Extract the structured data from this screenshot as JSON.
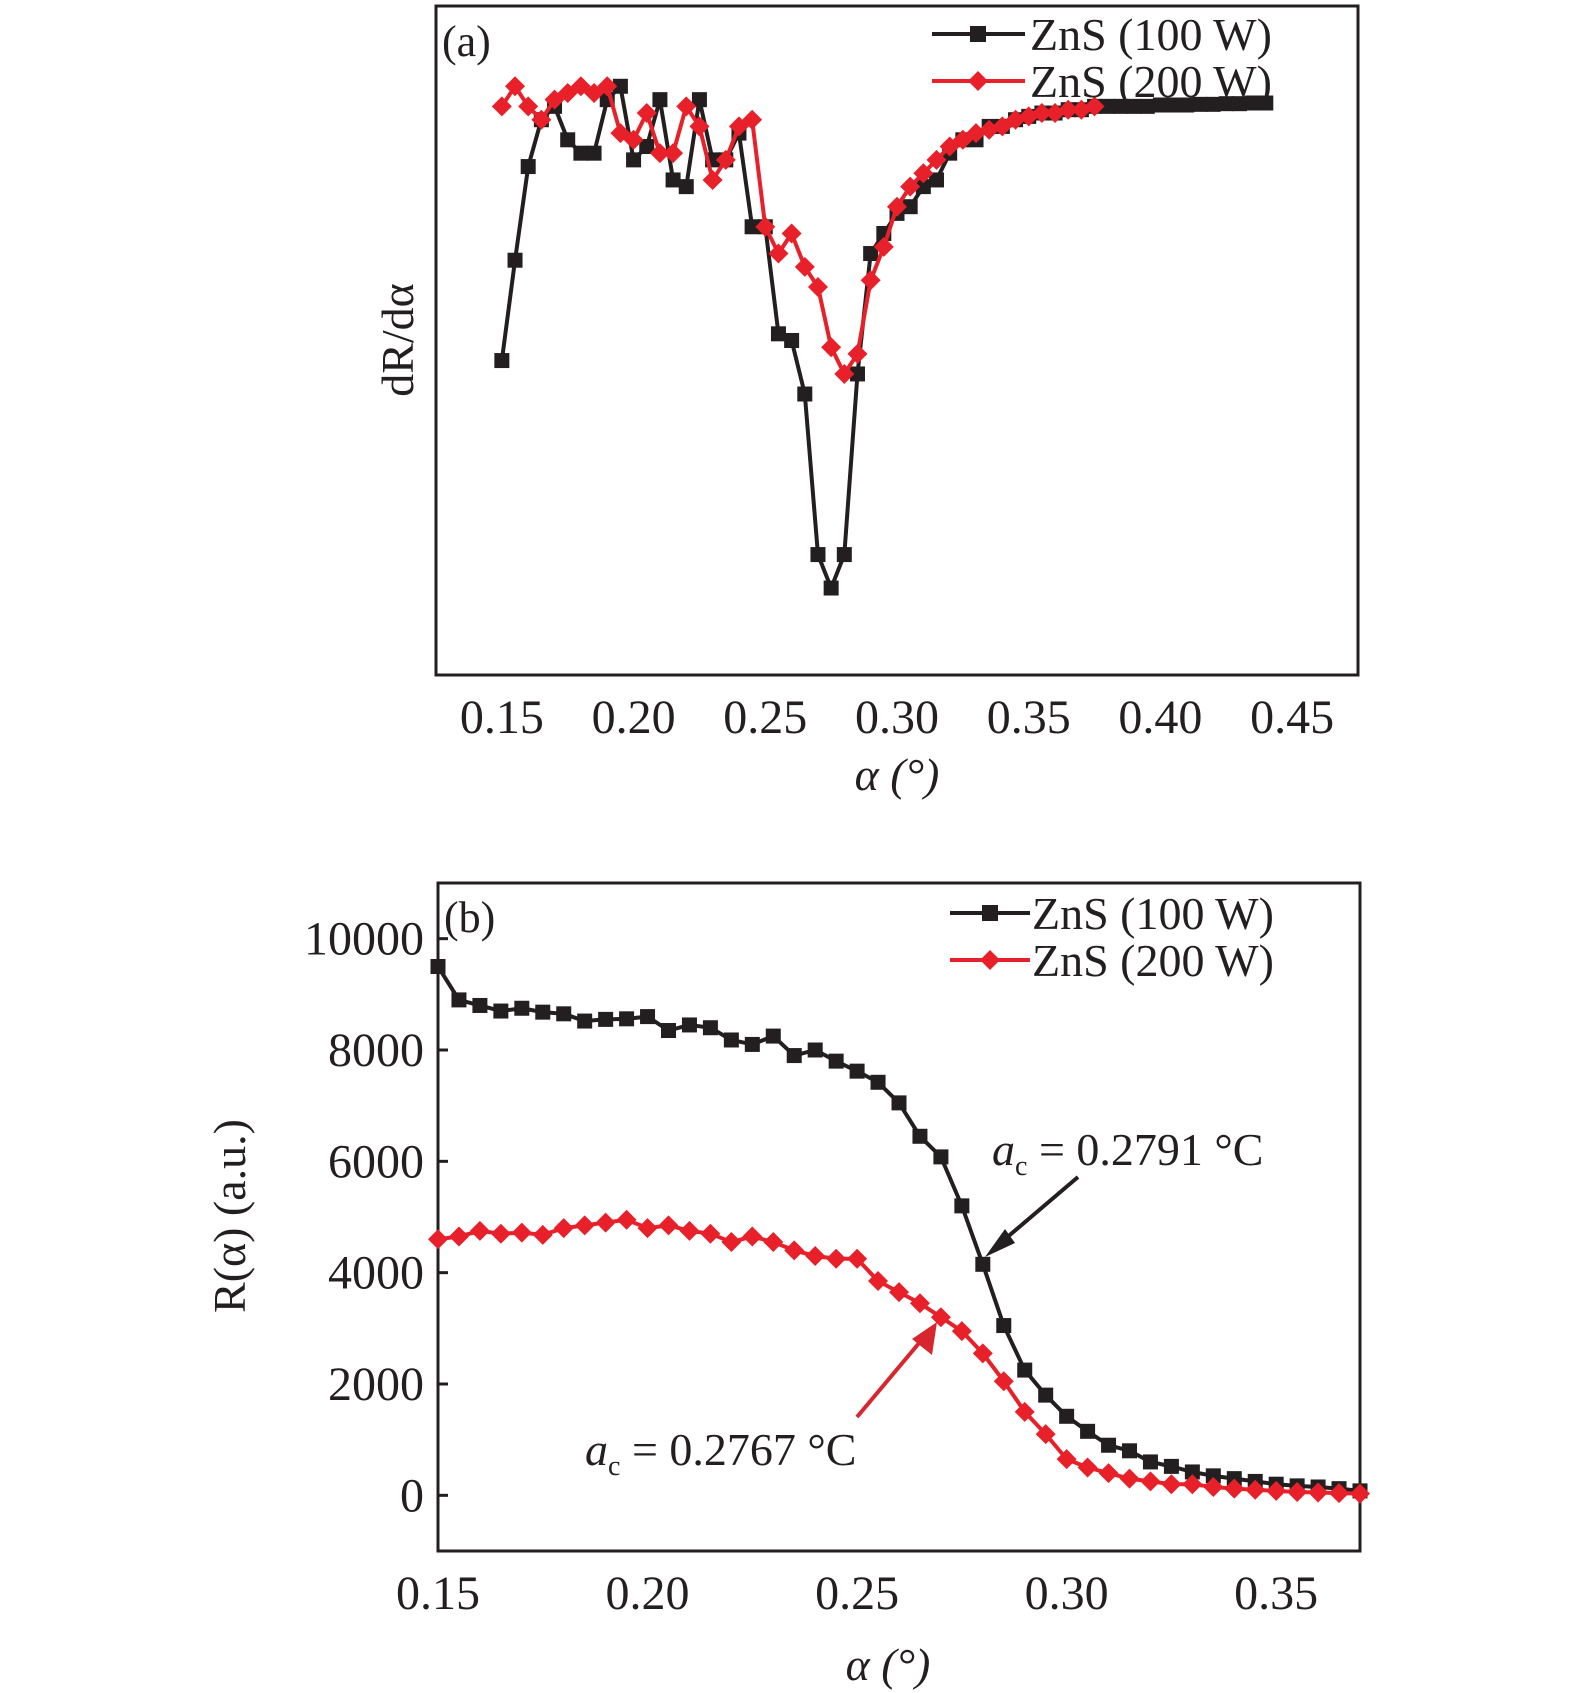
{
  "panels": [
    {
      "panel_label": "(a)",
      "xlabel": "α (°)",
      "ylabel": "dR/dα",
      "legend": [
        "ZnS (100 W)",
        "ZnS (200 W)"
      ]
    },
    {
      "panel_label": "(b)",
      "xlabel": "α (°)",
      "ylabel": "R(α) (a.u.)",
      "legend": [
        "ZnS (100 W)",
        "ZnS (200 W)"
      ],
      "annotations": [
        {
          "text": "a",
          "sub": "c",
          "value": " = 0.2791 °C",
          "color": "#231f20"
        },
        {
          "text": "a",
          "sub": "c",
          "value": " = 0.2767 °C",
          "color": "#d7262d"
        }
      ]
    }
  ],
  "colors": {
    "series_100W": "#231f20",
    "series_200W": "#e8202a",
    "annotation_red": "#d7262d"
  },
  "chart_data": [
    {
      "type": "line",
      "title": "",
      "xlabel": "α (°)",
      "ylabel": "dR/dα",
      "xlim": [
        0.125,
        0.475
      ],
      "ylim": [
        0,
        10
      ],
      "xticks": [
        "0.15",
        "0.20",
        "0.25",
        "0.30",
        "0.35",
        "0.40",
        "0.45"
      ],
      "yticks": [],
      "grid": false,
      "legend_position": "top-right",
      "series": [
        {
          "name": "ZnS (100 W)",
          "marker": "square",
          "x": [
            0.15,
            0.155,
            0.16,
            0.165,
            0.17,
            0.175,
            0.18,
            0.185,
            0.19,
            0.195,
            0.2,
            0.205,
            0.21,
            0.215,
            0.22,
            0.225,
            0.23,
            0.235,
            0.24,
            0.245,
            0.25,
            0.255,
            0.26,
            0.265,
            0.27,
            0.275,
            0.28,
            0.285,
            0.29,
            0.295,
            0.3,
            0.305,
            0.31,
            0.315,
            0.32,
            0.325,
            0.33,
            0.335,
            0.34,
            0.345,
            0.35,
            0.355,
            0.36,
            0.365,
            0.37,
            0.375,
            0.38,
            0.385,
            0.39,
            0.395,
            0.4,
            0.405,
            0.41,
            0.415,
            0.42,
            0.425,
            0.43,
            0.435,
            0.44
          ],
          "values": [
            4.7,
            6.2,
            7.6,
            8.3,
            8.5,
            8.0,
            7.8,
            7.8,
            8.6,
            8.8,
            7.7,
            7.9,
            8.6,
            7.4,
            7.3,
            8.6,
            7.7,
            7.7,
            8.1,
            6.7,
            6.7,
            5.1,
            5.0,
            4.2,
            1.8,
            1.3,
            1.8,
            4.5,
            6.3,
            6.6,
            6.9,
            7.0,
            7.3,
            7.4,
            7.8,
            8.0,
            8.0,
            8.2,
            8.2,
            8.3,
            8.35,
            8.4,
            8.4,
            8.45,
            8.45,
            8.5,
            8.5,
            8.5,
            8.5,
            8.5,
            8.52,
            8.52,
            8.52,
            8.53,
            8.53,
            8.54,
            8.54,
            8.55,
            8.55
          ]
        },
        {
          "name": "ZnS (200 W)",
          "marker": "diamond",
          "x": [
            0.15,
            0.155,
            0.16,
            0.165,
            0.17,
            0.175,
            0.18,
            0.185,
            0.19,
            0.195,
            0.2,
            0.205,
            0.21,
            0.215,
            0.22,
            0.225,
            0.23,
            0.235,
            0.24,
            0.245,
            0.25,
            0.255,
            0.26,
            0.265,
            0.27,
            0.275,
            0.28,
            0.285,
            0.29,
            0.295,
            0.3,
            0.305,
            0.31,
            0.315,
            0.32,
            0.325,
            0.33,
            0.335,
            0.34,
            0.345,
            0.35,
            0.355,
            0.36,
            0.365,
            0.37,
            0.375
          ],
          "values": [
            8.5,
            8.8,
            8.5,
            8.3,
            8.6,
            8.7,
            8.8,
            8.7,
            8.8,
            8.1,
            8.0,
            8.4,
            7.8,
            7.8,
            8.5,
            8.2,
            7.4,
            7.7,
            8.2,
            8.3,
            6.7,
            6.3,
            6.6,
            6.1,
            5.8,
            4.9,
            4.5,
            4.8,
            5.9,
            6.4,
            7.0,
            7.3,
            7.5,
            7.7,
            7.9,
            8.0,
            8.1,
            8.15,
            8.2,
            8.3,
            8.35,
            8.4,
            8.4,
            8.45,
            8.45,
            8.5
          ]
        }
      ]
    },
    {
      "type": "line",
      "title": "",
      "xlabel": "α (°)",
      "ylabel": "R(α) (a.u.)",
      "xlim": [
        0.15,
        0.37
      ],
      "ylim": [
        -1000,
        11000
      ],
      "xticks": [
        "0.15",
        "0.20",
        "0.25",
        "0.30",
        "0.35"
      ],
      "yticks": [
        "0",
        "2000",
        "4000",
        "6000",
        "8000",
        "10000"
      ],
      "grid": false,
      "legend_position": "top-right",
      "series": [
        {
          "name": "ZnS (100 W)",
          "marker": "square",
          "x": [
            0.15,
            0.155,
            0.16,
            0.165,
            0.17,
            0.175,
            0.18,
            0.185,
            0.19,
            0.195,
            0.2,
            0.205,
            0.21,
            0.215,
            0.22,
            0.225,
            0.23,
            0.235,
            0.24,
            0.245,
            0.25,
            0.255,
            0.26,
            0.265,
            0.27,
            0.275,
            0.28,
            0.285,
            0.29,
            0.295,
            0.3,
            0.305,
            0.31,
            0.315,
            0.32,
            0.325,
            0.33,
            0.335,
            0.34,
            0.345,
            0.35,
            0.355,
            0.36,
            0.365,
            0.37
          ],
          "values": [
            9500,
            8900,
            8800,
            8700,
            8750,
            8680,
            8650,
            8520,
            8550,
            8560,
            8600,
            8350,
            8450,
            8400,
            8180,
            8100,
            8250,
            7900,
            8000,
            7800,
            7620,
            7420,
            7050,
            6450,
            6080,
            5200,
            4150,
            3050,
            2250,
            1800,
            1420,
            1150,
            900,
            800,
            600,
            520,
            420,
            350,
            300,
            250,
            200,
            170,
            150,
            120,
            80
          ]
        },
        {
          "name": "ZnS (200 W)",
          "marker": "diamond",
          "x": [
            0.15,
            0.155,
            0.16,
            0.165,
            0.17,
            0.175,
            0.18,
            0.185,
            0.19,
            0.195,
            0.2,
            0.205,
            0.21,
            0.215,
            0.22,
            0.225,
            0.23,
            0.235,
            0.24,
            0.245,
            0.25,
            0.255,
            0.26,
            0.265,
            0.27,
            0.275,
            0.28,
            0.285,
            0.29,
            0.295,
            0.3,
            0.305,
            0.31,
            0.315,
            0.32,
            0.325,
            0.33,
            0.335,
            0.34,
            0.345,
            0.35,
            0.355,
            0.36,
            0.365,
            0.37
          ],
          "values": [
            4600,
            4650,
            4750,
            4700,
            4720,
            4680,
            4800,
            4850,
            4900,
            4950,
            4800,
            4850,
            4750,
            4700,
            4550,
            4650,
            4550,
            4400,
            4300,
            4250,
            4250,
            3850,
            3650,
            3450,
            3200,
            2950,
            2550,
            2050,
            1500,
            1100,
            650,
            500,
            400,
            300,
            250,
            200,
            200,
            150,
            120,
            100,
            80,
            60,
            50,
            40,
            30
          ]
        }
      ]
    }
  ]
}
